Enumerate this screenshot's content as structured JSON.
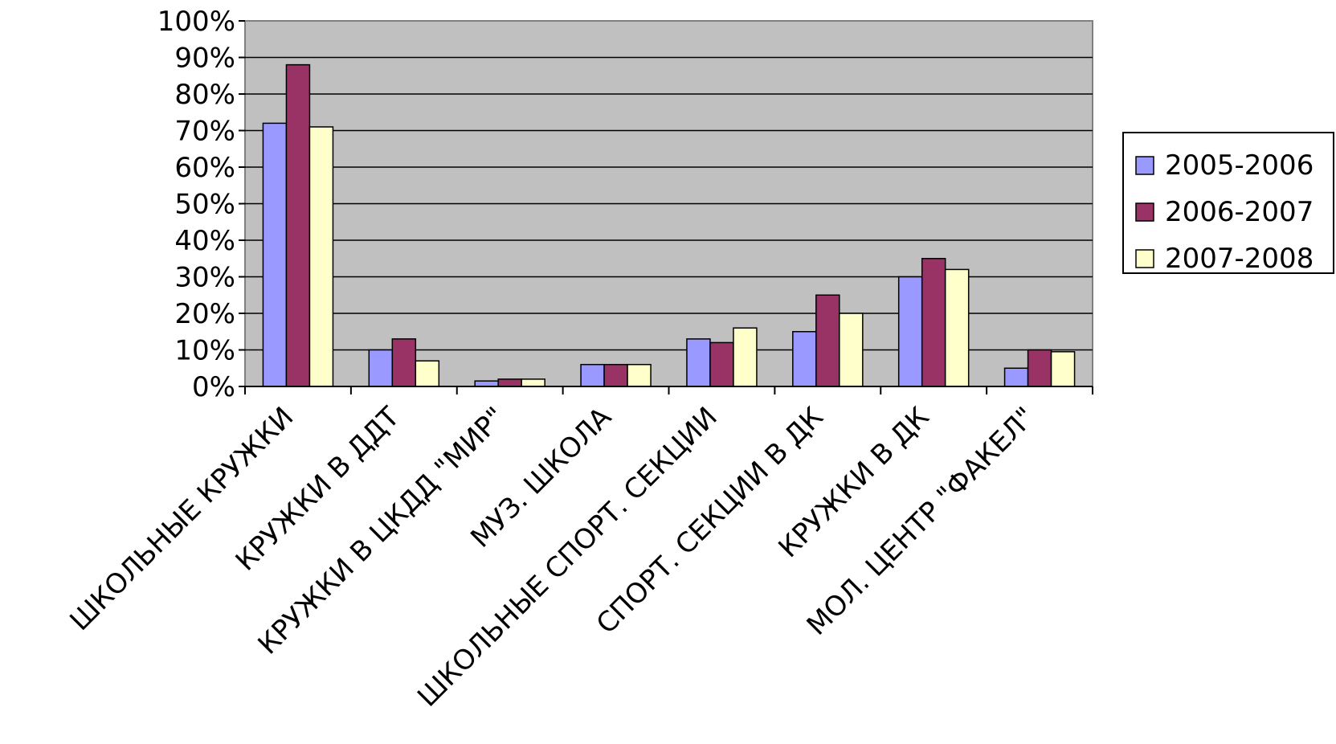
{
  "chart_data": {
    "type": "bar",
    "categories": [
      "ШКОЛЬНЫЕ КРУЖКИ",
      "КРУЖКИ В ДДТ",
      "КРУЖКИ В ЦКДД \"МИР\"",
      "МУЗ. ШКОЛА",
      "ШКОЛЬНЫЕ СПОРТ. СЕКЦИИ",
      "СПОРТ. СЕКЦИИ В ДК",
      "КРУЖКИ В ДК",
      "МОЛ. ЦЕНТР \"ФАКЕЛ\""
    ],
    "series": [
      {
        "name": "2005-2006",
        "color": "#9999ff",
        "values": [
          72,
          10,
          1.5,
          6,
          13,
          15,
          30,
          5
        ]
      },
      {
        "name": "2006-2007",
        "color": "#993366",
        "values": [
          88,
          13,
          2,
          6,
          12,
          25,
          35,
          10
        ]
      },
      {
        "name": "2007-2008",
        "color": "#ffffcc",
        "values": [
          71,
          7,
          2,
          6,
          16,
          20,
          32,
          9.5
        ]
      }
    ],
    "y_ticks": [
      "0%",
      "10%",
      "20%",
      "30%",
      "40%",
      "50%",
      "60%",
      "70%",
      "80%",
      "90%",
      "100%"
    ],
    "ylim": [
      0,
      100
    ],
    "grid": true,
    "plot_background": "#c0c0c0",
    "legend_position": "right"
  }
}
